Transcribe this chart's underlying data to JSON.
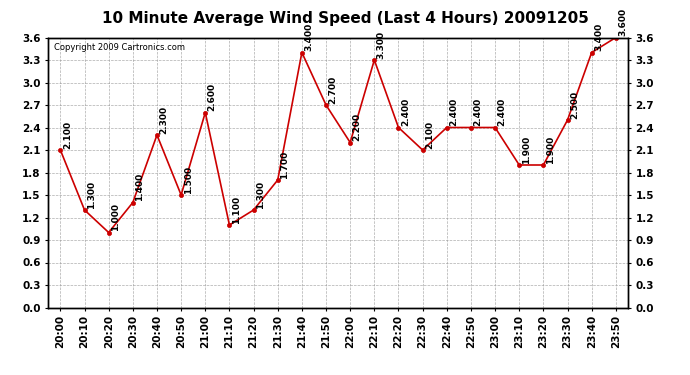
{
  "title": "10 Minute Average Wind Speed (Last 4 Hours) 20091205",
  "copyright": "Copyright 2009 Cartronics.com",
  "x_labels": [
    "20:00",
    "20:10",
    "20:20",
    "20:30",
    "20:40",
    "20:50",
    "21:00",
    "21:10",
    "21:20",
    "21:30",
    "21:40",
    "21:50",
    "22:00",
    "22:10",
    "22:20",
    "22:30",
    "22:40",
    "22:50",
    "23:00",
    "23:10",
    "23:20",
    "23:30",
    "23:40",
    "23:50"
  ],
  "y_values": [
    2.1,
    1.3,
    1.0,
    1.4,
    2.3,
    1.5,
    2.6,
    1.1,
    1.3,
    1.7,
    3.4,
    2.7,
    2.2,
    3.3,
    2.4,
    2.1,
    2.4,
    2.4,
    2.4,
    1.9,
    1.9,
    2.5,
    3.4,
    3.6
  ],
  "line_color": "#cc0000",
  "marker_color": "#cc0000",
  "bg_color": "#ffffff",
  "grid_color": "#999999",
  "ylim_min": 0.0,
  "ylim_max": 3.6,
  "title_fontsize": 11,
  "tick_fontsize": 7.5,
  "annotation_fontsize": 6.5
}
